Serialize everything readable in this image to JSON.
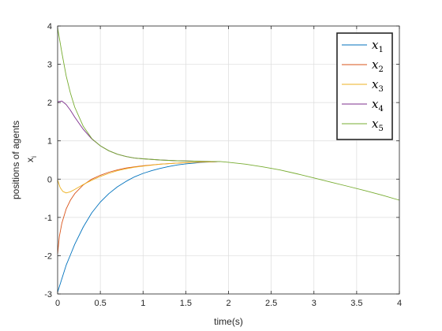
{
  "chart_data": {
    "type": "line",
    "xlabel": "time(s)",
    "ylabel": "positions of agents",
    "ylabel_symbol": "x",
    "ylabel_symbol_sub": "i",
    "xlim": [
      0,
      4
    ],
    "ylim": [
      -3,
      4
    ],
    "xticks": [
      0,
      0.5,
      1,
      1.5,
      2,
      2.5,
      3,
      3.5,
      4
    ],
    "xtick_labels": [
      "0",
      "0.5",
      "1",
      "1.5",
      "2",
      "2.5",
      "3",
      "3.5",
      "4"
    ],
    "yticks": [
      -3,
      -2,
      -1,
      0,
      1,
      2,
      3,
      4
    ],
    "ytick_labels": [
      "-3",
      "-2",
      "-1",
      "0",
      "1",
      "2",
      "3",
      "4"
    ],
    "grid": true,
    "legend_position": "top-right",
    "series": [
      {
        "name": "x",
        "sub": "1",
        "color": "#0072BD",
        "x": [
          0,
          0.05,
          0.1,
          0.15,
          0.2,
          0.3,
          0.4,
          0.5,
          0.6,
          0.7,
          0.8,
          0.9,
          1.0,
          1.1,
          1.2,
          1.3,
          1.4,
          1.5,
          1.6,
          1.7,
          1.8,
          1.9
        ],
        "y": [
          -2.95,
          -2.6,
          -2.25,
          -1.98,
          -1.7,
          -1.25,
          -0.88,
          -0.6,
          -0.38,
          -0.2,
          -0.06,
          0.06,
          0.15,
          0.22,
          0.28,
          0.33,
          0.37,
          0.4,
          0.42,
          0.44,
          0.45,
          0.46
        ]
      },
      {
        "name": "x",
        "sub": "2",
        "color": "#D95319",
        "x": [
          0,
          0.02,
          0.05,
          0.1,
          0.15,
          0.2,
          0.3,
          0.4,
          0.5,
          0.6,
          0.7,
          0.8,
          0.9,
          1.0,
          1.2,
          1.4,
          1.6,
          1.8,
          1.9
        ],
        "y": [
          -1.95,
          -1.5,
          -1.15,
          -0.78,
          -0.55,
          -0.38,
          -0.15,
          0.0,
          0.1,
          0.18,
          0.24,
          0.29,
          0.32,
          0.35,
          0.39,
          0.42,
          0.44,
          0.45,
          0.46
        ]
      },
      {
        "name": "x",
        "sub": "3",
        "color": "#EDB120",
        "x": [
          0,
          0.03,
          0.06,
          0.1,
          0.15,
          0.2,
          0.3,
          0.4,
          0.5,
          0.6,
          0.7,
          0.8,
          0.9,
          1.0,
          1.2,
          1.4,
          1.6,
          1.8,
          1.9
        ],
        "y": [
          -0.02,
          -0.22,
          -0.32,
          -0.36,
          -0.33,
          -0.27,
          -0.14,
          -0.03,
          0.07,
          0.15,
          0.22,
          0.27,
          0.31,
          0.34,
          0.39,
          0.42,
          0.44,
          0.45,
          0.46
        ]
      },
      {
        "name": "x",
        "sub": "4",
        "color": "#7E2F8E",
        "x": [
          0,
          0.05,
          0.1,
          0.15,
          0.2,
          0.3,
          0.4,
          0.5,
          0.6,
          0.7,
          0.8,
          0.9,
          1.0,
          1.2,
          1.4,
          1.6,
          1.8,
          1.9
        ],
        "y": [
          2.02,
          2.04,
          1.95,
          1.8,
          1.62,
          1.3,
          1.05,
          0.87,
          0.74,
          0.65,
          0.59,
          0.55,
          0.53,
          0.5,
          0.48,
          0.47,
          0.46,
          0.46
        ]
      },
      {
        "name": "x",
        "sub": "5",
        "color": "#77AC30",
        "x": [
          0,
          0.05,
          0.1,
          0.15,
          0.2,
          0.3,
          0.4,
          0.5,
          0.6,
          0.7,
          0.8,
          0.9,
          1.0,
          1.2,
          1.4,
          1.6,
          1.8,
          1.9,
          2.0,
          2.2,
          2.4,
          2.6,
          2.8,
          3.0,
          3.2,
          3.4,
          3.6,
          3.8,
          4.0
        ],
        "y": [
          3.95,
          3.3,
          2.7,
          2.25,
          1.88,
          1.38,
          1.06,
          0.87,
          0.74,
          0.65,
          0.59,
          0.55,
          0.53,
          0.5,
          0.48,
          0.47,
          0.46,
          0.46,
          0.44,
          0.39,
          0.32,
          0.24,
          0.14,
          0.03,
          -0.08,
          -0.19,
          -0.3,
          -0.42,
          -0.55
        ]
      }
    ]
  }
}
